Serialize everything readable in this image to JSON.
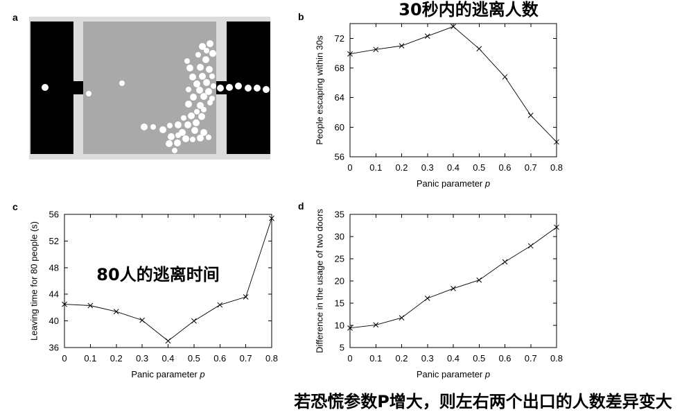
{
  "panel_labels": [
    "a",
    "b",
    "c",
    "d"
  ],
  "figure_note": "若恐慌参数P增大，则左右两个出口的人数差异变大",
  "colors": {
    "room_frame": "#dcdcdc",
    "room_floor": "#a9a9a9",
    "wall": "#000000",
    "pedestrian": "#ffffff"
  },
  "chart_data": [
    {
      "type": "line",
      "title": "30秒内的逃离人数",
      "xlabel": "Panic parameter p",
      "ylabel": "People escaping within 30s",
      "x": [
        0,
        0.1,
        0.2,
        0.3,
        0.4,
        0.5,
        0.6,
        0.7,
        0.8
      ],
      "y": [
        69.9,
        70.5,
        71.0,
        72.3,
        73.6,
        70.6,
        66.8,
        61.6,
        58.0
      ],
      "xlim": [
        0,
        0.8
      ],
      "ylim": [
        56,
        74
      ],
      "xticks": [
        0,
        0.1,
        0.2,
        0.3,
        0.4,
        0.5,
        0.6,
        0.7,
        0.8
      ],
      "yticks": [
        56,
        60,
        64,
        68,
        72
      ],
      "marker": "x",
      "grid": false
    },
    {
      "type": "line",
      "annotation": "80人的逃离时间",
      "xlabel": "Panic parameter p",
      "ylabel": "Leaving time for 80 people (s)",
      "x": [
        0,
        0.1,
        0.2,
        0.3,
        0.4,
        0.5,
        0.6,
        0.7,
        0.8
      ],
      "y": [
        42.5,
        42.3,
        41.4,
        40.1,
        37.0,
        40.0,
        42.4,
        43.6,
        55.4
      ],
      "xlim": [
        0,
        0.8
      ],
      "ylim": [
        36,
        56
      ],
      "xticks": [
        0,
        0.1,
        0.2,
        0.3,
        0.4,
        0.5,
        0.6,
        0.7,
        0.8
      ],
      "yticks": [
        36,
        40,
        44,
        48,
        52,
        56
      ],
      "marker": "x",
      "grid": false
    },
    {
      "type": "line",
      "xlabel": "Panic parameter p",
      "ylabel": "Difference in the usage of two doors",
      "x": [
        0,
        0.1,
        0.2,
        0.3,
        0.4,
        0.5,
        0.6,
        0.7,
        0.8
      ],
      "y": [
        9.4,
        10.1,
        11.7,
        16.1,
        18.3,
        20.2,
        24.3,
        27.9,
        32.1
      ],
      "xlim": [
        0,
        0.8
      ],
      "ylim": [
        5,
        35
      ],
      "xticks": [
        0,
        0.1,
        0.2,
        0.3,
        0.4,
        0.5,
        0.6,
        0.7,
        0.8
      ],
      "yticks": [
        5,
        10,
        15,
        20,
        25,
        30,
        35
      ],
      "marker": "x",
      "grid": false
    }
  ]
}
